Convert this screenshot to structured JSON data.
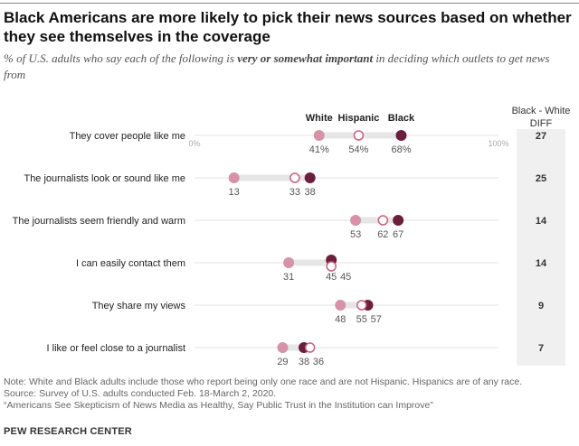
{
  "title": "Black Americans are more likely to pick their news sources based on whether they see themselves in the coverage",
  "subtitle": {
    "pre": "% of U.S. adults who say each of the following is ",
    "bold": "very or somewhat important",
    "post": " in deciding which outlets to get news from"
  },
  "notes": [
    "Note: White and Black adults include those who report being only one race and are not Hispanic. Hispanics are of any race.",
    "Source: Survey of U.S. adults conducted Feb. 18-March 2, 2020.",
    "“Americans See Skepticism of News Media as Healthy, Say Public Trust in the Institution can Improve”"
  ],
  "brand": "PEW RESEARCH CENTER",
  "colors": {
    "White": "#d693a7",
    "Hispanic": "#ffffff",
    "Hispanic_stroke": "#c8607f",
    "Black": "#6b1f3d",
    "track": "#e6e6e6",
    "diff_bg": "#f0f0f0"
  },
  "chart_data": {
    "type": "dot",
    "xlim": [
      0,
      100
    ],
    "axis_labels": [
      "0%",
      "100%"
    ],
    "legend": [
      "White",
      "Hispanic",
      "Black"
    ],
    "diff_header": [
      "Black - White",
      "DIFF"
    ],
    "categories": [
      "They cover people like me",
      "The journalists look or sound like me",
      "The journalists seem friendly and warm",
      "I can easily contact them",
      "They share my views",
      "I like or feel close to a journalist"
    ],
    "series": [
      {
        "name": "White",
        "values": [
          41,
          13,
          53,
          31,
          48,
          29
        ]
      },
      {
        "name": "Hispanic",
        "values": [
          54,
          33,
          62,
          45,
          55,
          38
        ]
      },
      {
        "name": "Black",
        "values": [
          68,
          38,
          67,
          45,
          57,
          36
        ]
      }
    ],
    "diff": [
      27,
      25,
      14,
      14,
      9,
      7
    ],
    "value_labels": [
      [
        "41%",
        "54%",
        "68%"
      ],
      [
        "13",
        "33",
        "38"
      ],
      [
        "53",
        "62",
        "67"
      ],
      [
        "31",
        "45",
        "45"
      ],
      [
        "48",
        "55",
        "57"
      ],
      [
        "29",
        "36",
        "38"
      ]
    ]
  }
}
